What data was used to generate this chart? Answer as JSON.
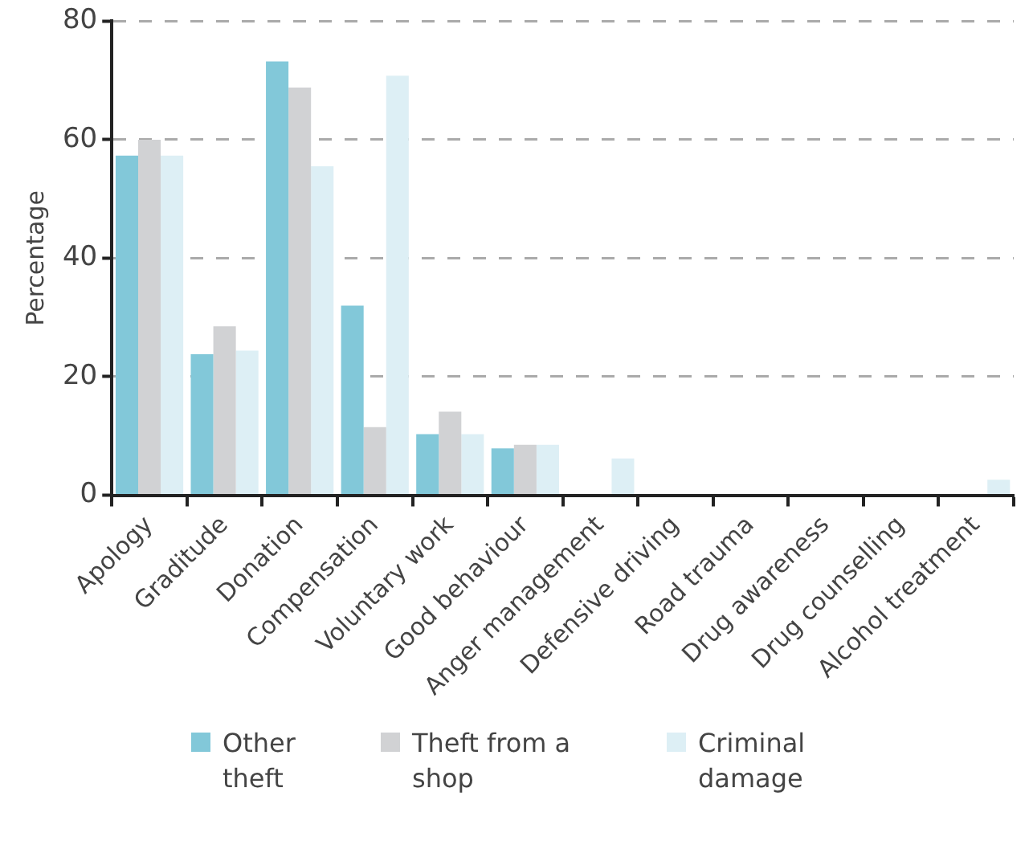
{
  "chart_data": {
    "type": "bar",
    "ylabel": "Percentage",
    "categories": [
      "Apology",
      "Graditude",
      "Donation",
      "Compensation",
      "Voluntary work",
      "Good behaviour",
      "Anger management",
      "Defensive driving",
      "Road trauma",
      "Drug awareness",
      "Drug counselling",
      "Alcohol treatment"
    ],
    "series": [
      {
        "name": "Other theft",
        "color": "#82c8d9",
        "values": [
          57.3,
          23.8,
          73.2,
          32,
          10.3,
          7.9,
          0,
          0,
          0,
          0,
          0,
          0
        ]
      },
      {
        "name": "Theft from a shop",
        "color": "#d1d2d4",
        "values": [
          60,
          28.5,
          68.8,
          11.5,
          14.1,
          8.5,
          0,
          0,
          0,
          0,
          0,
          0
        ]
      },
      {
        "name": "Criminal damage",
        "color": "#ddeff5",
        "values": [
          57.3,
          24.4,
          55.5,
          70.8,
          10.3,
          8.5,
          6.2,
          0,
          0,
          0,
          0,
          2.6
        ]
      }
    ],
    "ylim": [
      0,
      80
    ],
    "yticks": [
      0,
      20,
      40,
      60,
      80
    ],
    "grid": "y",
    "legend": "bottom"
  }
}
